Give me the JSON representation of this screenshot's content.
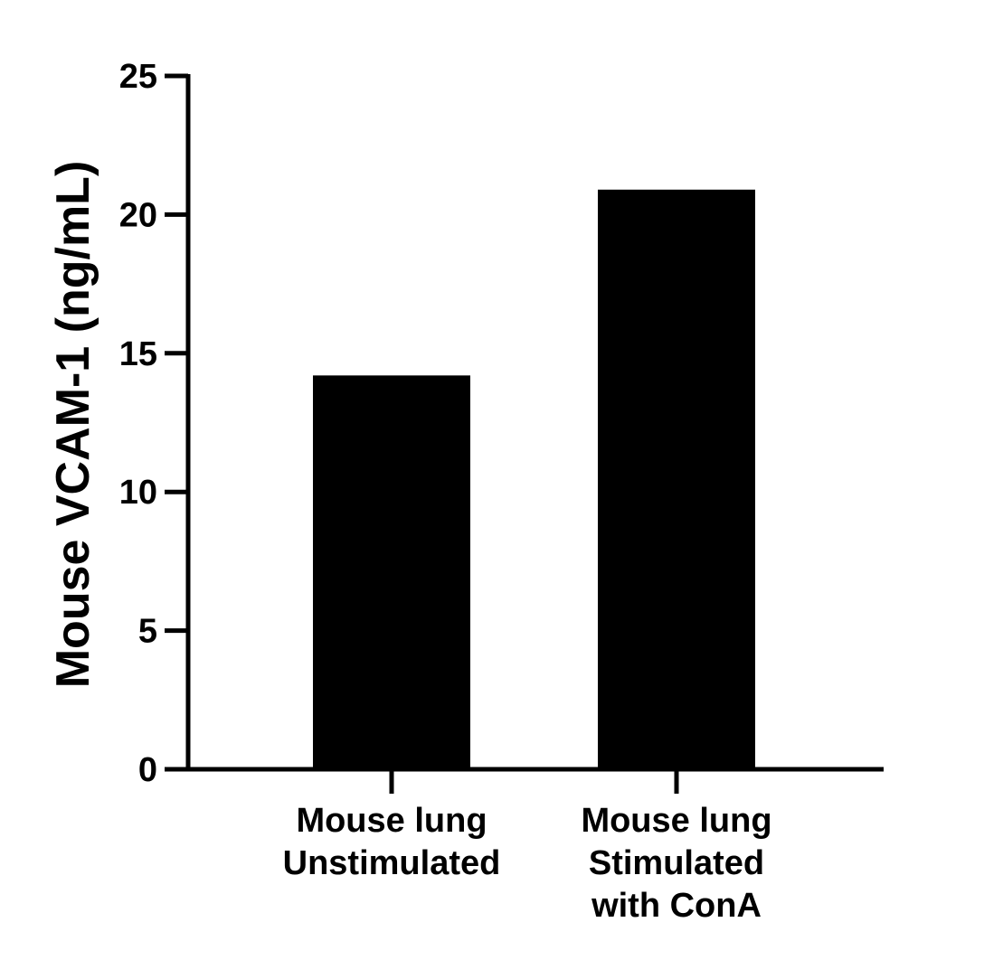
{
  "chart_data": {
    "type": "bar",
    "title": "",
    "xlabel": "",
    "ylabel": "Mouse VCAM-1 (ng/mL)",
    "categories": [
      [
        "Mouse lung",
        "Unstimulated"
      ],
      [
        "Mouse lung",
        "Stimulated",
        "with ConA"
      ]
    ],
    "values": [
      14.2,
      20.9
    ],
    "ylim": [
      0,
      25
    ],
    "yticks": [
      0,
      5,
      10,
      15,
      20,
      25
    ],
    "bar_color": "#000000",
    "grid": false,
    "legend": "none"
  }
}
